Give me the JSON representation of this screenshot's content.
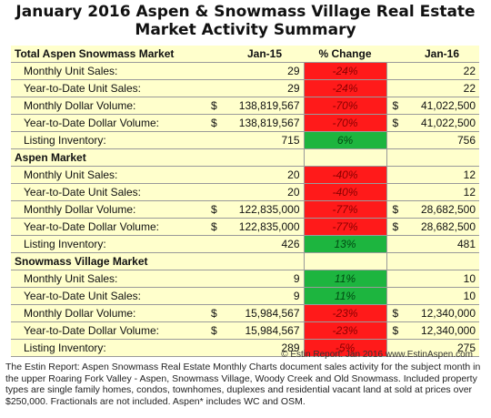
{
  "title_line1": "January 2016 Aspen & Snowmass Village Real Estate",
  "title_line2": "Market Activity Summary",
  "table": {
    "sections": [
      {
        "name": "Total Aspen Snowmass Market",
        "col1": "Jan-15",
        "col2": "% Change",
        "col3": "Jan-16",
        "rows": [
          {
            "label": "Monthly Unit Sales:",
            "jan15": "29",
            "change": "-24%",
            "jan16": "22",
            "color": "red",
            "dollar": false
          },
          {
            "label": "Year-to-Date Unit Sales:",
            "jan15": "29",
            "change": "-24%",
            "jan16": "22",
            "color": "red",
            "dollar": false
          },
          {
            "label": "Monthly Dollar Volume:",
            "jan15": "138,819,567",
            "change": "-70%",
            "jan16": "41,022,500",
            "color": "red",
            "dollar": true
          },
          {
            "label": "Year-to-Date Dollar Volume:",
            "jan15": "138,819,567",
            "change": "-70%",
            "jan16": "41,022,500",
            "color": "red",
            "dollar": true
          },
          {
            "label": "Listing Inventory:",
            "jan15": "715",
            "change": "6%",
            "jan16": "756",
            "color": "green",
            "dollar": false
          }
        ]
      },
      {
        "name": "Aspen Market",
        "rows": [
          {
            "label": "Monthly Unit Sales:",
            "jan15": "20",
            "change": "-40%",
            "jan16": "12",
            "color": "red",
            "dollar": false
          },
          {
            "label": "Year-to-Date Unit Sales:",
            "jan15": "20",
            "change": "-40%",
            "jan16": "12",
            "color": "red",
            "dollar": false
          },
          {
            "label": "Monthly Dollar Volume:",
            "jan15": "122,835,000",
            "change": "-77%",
            "jan16": "28,682,500",
            "color": "red",
            "dollar": true
          },
          {
            "label": "Year-to-Date Dollar Volume:",
            "jan15": "122,835,000",
            "change": "-77%",
            "jan16": "28,682,500",
            "color": "red",
            "dollar": true
          },
          {
            "label": "Listing Inventory:",
            "jan15": "426",
            "change": "13%",
            "jan16": "481",
            "color": "green",
            "dollar": false
          }
        ]
      },
      {
        "name": "Snowmass Village Market",
        "rows": [
          {
            "label": "Monthly Unit Sales:",
            "jan15": "9",
            "change": "11%",
            "jan16": "10",
            "color": "green",
            "dollar": false
          },
          {
            "label": "Year-to-Date Unit Sales:",
            "jan15": "9",
            "change": "11%",
            "jan16": "10",
            "color": "green",
            "dollar": false
          },
          {
            "label": "Monthly Dollar Volume:",
            "jan15": "15,984,567",
            "change": "-23%",
            "jan16": "12,340,000",
            "color": "red",
            "dollar": true
          },
          {
            "label": "Year-to-Date Dollar Volume:",
            "jan15": "15,984,567",
            "change": "-23%",
            "jan16": "12,340,000",
            "color": "red",
            "dollar": true
          },
          {
            "label": "Listing Inventory:",
            "jan15": "289",
            "change": "-5%",
            "jan16": "275",
            "color": "red",
            "dollar": false
          }
        ]
      }
    ],
    "currency_symbol": "$"
  },
  "copyright": "© Estin Report: Jan 2016 www.EstinAspen.com",
  "footer_note": "The Estin Report: Aspen Snowmass Real Estate Monthly Charts document sales activity for the subject month in the upper Roaring Fork Valley - Aspen, Snowmass Village, Woody Creek and Old Snowmass. Included property types are single family homes, condos, townhomes, duplexes and residential vacant land at sold at prices over $250,000. Fractionals are not included. Aspen* includes WC and OSM."
}
